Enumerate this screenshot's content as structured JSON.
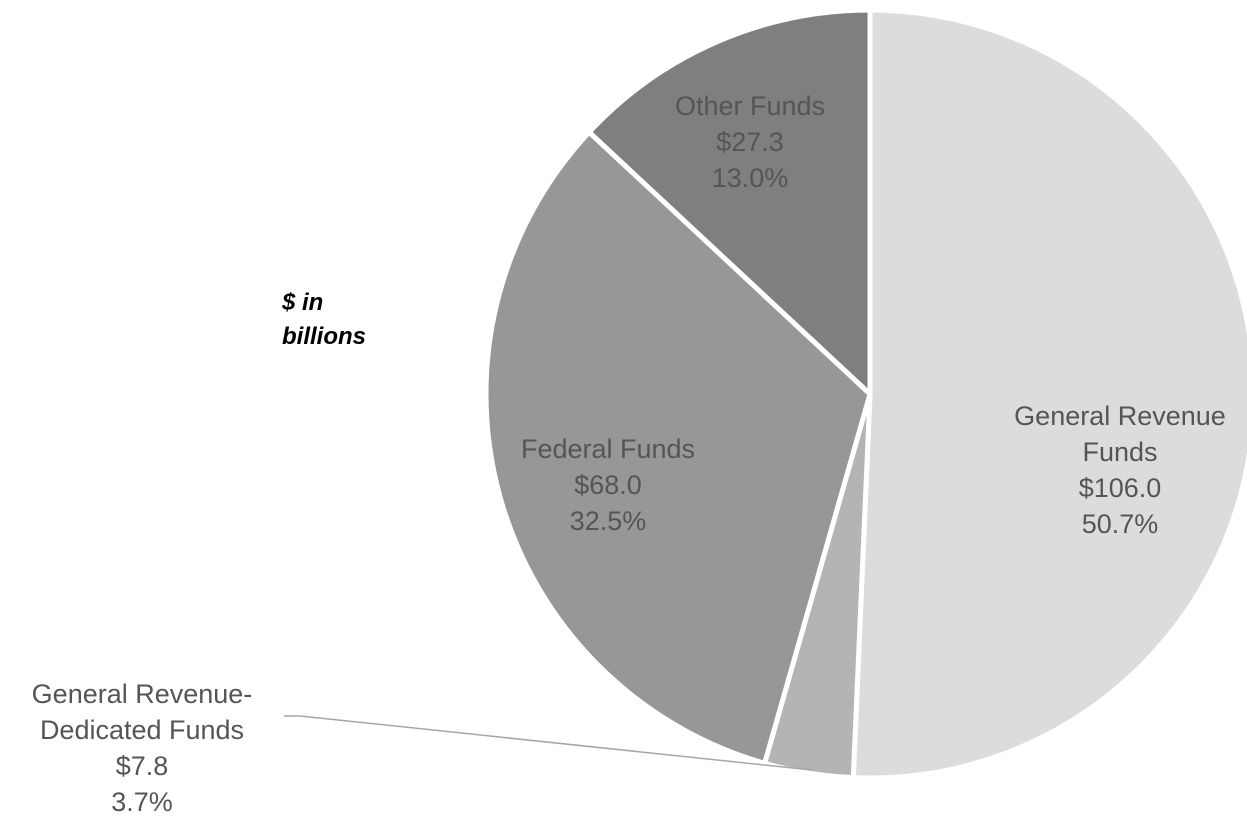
{
  "chart_data": {
    "type": "pie",
    "note": "$ in billions",
    "slices": [
      {
        "label": "General Revenue Funds",
        "value": 106.0,
        "value_text": "$106.0",
        "percent": "50.7%",
        "color": "#dcdcdc"
      },
      {
        "label": "General Revenue-Dedicated Funds",
        "value": 7.8,
        "value_text": "$7.8",
        "percent": "3.7%",
        "color": "#b4b4b4"
      },
      {
        "label": "Federal  Funds",
        "value": 68.0,
        "value_text": "$68.0",
        "percent": "32.5%",
        "color": "#979797"
      },
      {
        "label": "Other Funds",
        "value": 27.3,
        "value_text": "$27.3",
        "percent": "13.0%",
        "color": "#7f7f7f"
      }
    ],
    "label_lines": [
      [
        "General Revenue",
        "Funds",
        "$106.0",
        "50.7%"
      ],
      [
        "General Revenue-",
        "Dedicated Funds",
        "$7.8",
        "3.7%"
      ],
      [
        "Federal  Funds",
        "$68.0",
        "32.5%"
      ],
      [
        "Other Funds",
        "$27.3",
        "13.0%"
      ]
    ],
    "start": "12 o'clock",
    "direction": "clockwise",
    "legend": "none"
  }
}
